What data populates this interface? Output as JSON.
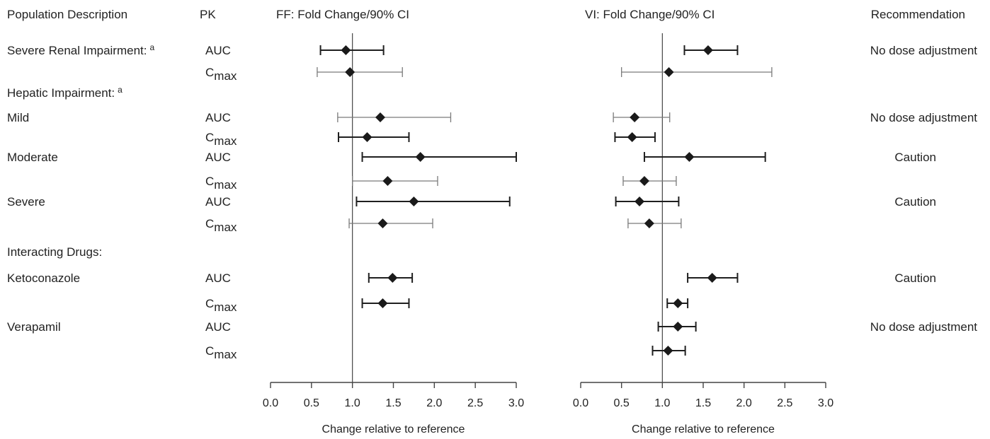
{
  "headers": {
    "population": "Population Description",
    "pk": "PK",
    "ff": "FF: Fold Change/90% CI",
    "vi": "VI: Fold Change/90% CI",
    "recommendation": "Recommendation"
  },
  "rows": [
    {
      "kind": "data",
      "population": "Severe Renal Impairment:",
      "sup": "a",
      "pk": "AUC",
      "rec": "No dose adjustment"
    },
    {
      "kind": "data",
      "population": "",
      "pk": "C",
      "pk_sub": "max",
      "rec": ""
    },
    {
      "kind": "heading",
      "population": "Hepatic Impairment:",
      "sup": "a"
    },
    {
      "kind": "data",
      "population": "Mild",
      "pk": "AUC",
      "rec": "No dose adjustment"
    },
    {
      "kind": "data",
      "population": "",
      "pk": "C",
      "pk_sub": "max",
      "rec": ""
    },
    {
      "kind": "data",
      "population": "Moderate",
      "pk": "AUC",
      "rec": "Caution"
    },
    {
      "kind": "data",
      "population": "",
      "pk": "C",
      "pk_sub": "max",
      "rec": ""
    },
    {
      "kind": "data",
      "population": "Severe",
      "pk": "AUC",
      "rec": "Caution"
    },
    {
      "kind": "data",
      "population": "",
      "pk": "C",
      "pk_sub": "max",
      "rec": ""
    },
    {
      "kind": "heading",
      "population": "Interacting Drugs:"
    },
    {
      "kind": "data",
      "population": "Ketoconazole",
      "pk": "AUC",
      "rec": "Caution"
    },
    {
      "kind": "data",
      "population": "",
      "pk": "C",
      "pk_sub": "max",
      "rec": ""
    },
    {
      "kind": "data",
      "population": "Verapamil",
      "pk": "AUC",
      "rec": "No dose adjustment"
    },
    {
      "kind": "data",
      "population": "",
      "pk": "C",
      "pk_sub": "max",
      "rec": ""
    }
  ],
  "chart_data": [
    {
      "type": "forest",
      "title": "FF: Fold Change/90% CI",
      "xlabel": "Change relative to reference",
      "xlim": [
        0,
        3
      ],
      "ticks": [
        "0.0",
        "0.5",
        "1.0",
        "1.5",
        "2.0",
        "2.5",
        "3.0"
      ],
      "reference_line": 1.0,
      "points": [
        {
          "row": 0,
          "est": 0.92,
          "lo": 0.61,
          "hi": 1.38,
          "style": "dark"
        },
        {
          "row": 1,
          "est": 0.97,
          "lo": 0.57,
          "hi": 1.61,
          "style": "light"
        },
        {
          "row": 3,
          "est": 1.34,
          "lo": 0.82,
          "hi": 2.2,
          "style": "light"
        },
        {
          "row": 4,
          "est": 1.18,
          "lo": 0.83,
          "hi": 1.69,
          "style": "dark"
        },
        {
          "row": 5,
          "est": 1.83,
          "lo": 1.12,
          "hi": 3.0,
          "style": "dark"
        },
        {
          "row": 6,
          "est": 1.43,
          "lo": 1.0,
          "hi": 2.04,
          "style": "light"
        },
        {
          "row": 7,
          "est": 1.75,
          "lo": 1.05,
          "hi": 2.92,
          "style": "dark"
        },
        {
          "row": 8,
          "est": 1.37,
          "lo": 0.96,
          "hi": 1.98,
          "style": "light"
        },
        {
          "row": 10,
          "est": 1.49,
          "lo": 1.2,
          "hi": 1.73,
          "style": "dark"
        },
        {
          "row": 11,
          "est": 1.37,
          "lo": 1.12,
          "hi": 1.69,
          "style": "dark"
        }
      ]
    },
    {
      "type": "forest",
      "title": "VI: Fold Change/90% CI",
      "xlabel": "Change relative to reference",
      "xlim": [
        0,
        3
      ],
      "ticks": [
        "0.0",
        "0.5",
        "1.0",
        "1.5",
        "2.0",
        "2.5",
        "3.0"
      ],
      "reference_line": 1.0,
      "points": [
        {
          "row": 0,
          "est": 1.56,
          "lo": 1.27,
          "hi": 1.92,
          "style": "dark"
        },
        {
          "row": 1,
          "est": 1.08,
          "lo": 0.5,
          "hi": 2.34,
          "style": "light"
        },
        {
          "row": 3,
          "est": 0.66,
          "lo": 0.4,
          "hi": 1.09,
          "style": "light"
        },
        {
          "row": 4,
          "est": 0.63,
          "lo": 0.42,
          "hi": 0.91,
          "style": "dark"
        },
        {
          "row": 5,
          "est": 1.33,
          "lo": 0.78,
          "hi": 2.26,
          "style": "dark"
        },
        {
          "row": 6,
          "est": 0.78,
          "lo": 0.52,
          "hi": 1.17,
          "style": "light"
        },
        {
          "row": 7,
          "est": 0.72,
          "lo": 0.43,
          "hi": 1.2,
          "style": "dark"
        },
        {
          "row": 8,
          "est": 0.84,
          "lo": 0.58,
          "hi": 1.23,
          "style": "light"
        },
        {
          "row": 10,
          "est": 1.61,
          "lo": 1.31,
          "hi": 1.92,
          "style": "dark"
        },
        {
          "row": 11,
          "est": 1.19,
          "lo": 1.06,
          "hi": 1.31,
          "style": "dark"
        },
        {
          "row": 12,
          "est": 1.19,
          "lo": 0.95,
          "hi": 1.41,
          "style": "dark"
        },
        {
          "row": 13,
          "est": 1.07,
          "lo": 0.88,
          "hi": 1.28,
          "style": "dark"
        }
      ]
    }
  ],
  "colors": {
    "dark": "#1f1f1f",
    "light": "#7a7a7a",
    "axis": "#444444",
    "text": "#222222"
  }
}
